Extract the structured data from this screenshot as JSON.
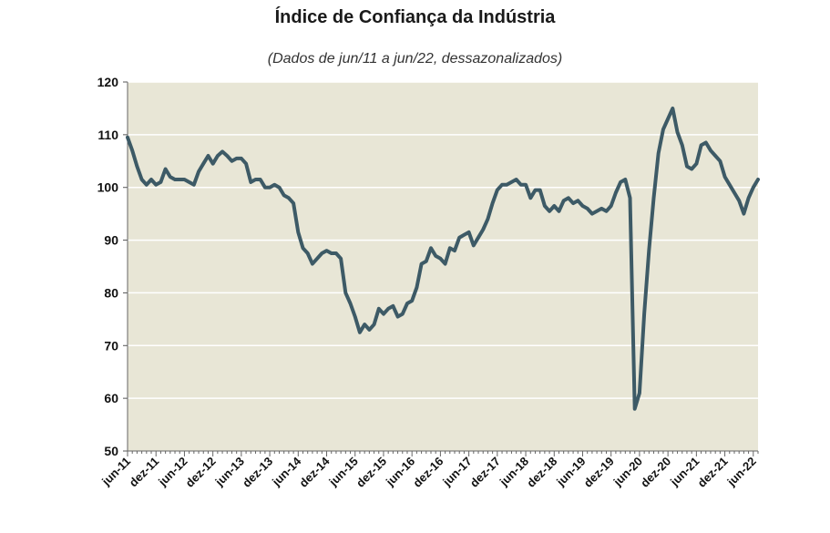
{
  "chart_data": {
    "type": "line",
    "title": "Índice de Confiança da Indústria",
    "subtitle": "(Dados de jun/11 a jun/22, dessazonalizados)",
    "xlabel": "",
    "ylabel": "",
    "ylim": [
      50,
      120
    ],
    "yticks": [
      50,
      60,
      70,
      80,
      90,
      100,
      110,
      120
    ],
    "xtick_labels": [
      "jun-11",
      "dez-11",
      "jun-12",
      "dez-12",
      "jun-13",
      "dez-13",
      "jun-14",
      "dez-14",
      "jun-15",
      "dez-15",
      "jun-16",
      "dez-16",
      "jun-17",
      "dez-17",
      "jun-18",
      "dez-18",
      "jun-19",
      "dez-19",
      "jun-20",
      "dez-20",
      "jun-21",
      "dez-21",
      "jun-22"
    ],
    "grid": true,
    "colors": {
      "line": "#3d5a66",
      "plot_bg": "#e8e6d6",
      "grid": "#ffffff"
    },
    "series": [
      {
        "values": [
          109.5,
          107,
          104,
          101.5,
          100.5,
          101.5,
          100.5,
          101,
          103.5,
          102,
          101.5,
          101.5,
          101.5,
          101,
          100.5,
          103,
          104.5,
          106,
          104.5,
          106,
          106.8,
          106,
          105,
          105.5,
          105.5,
          104.5,
          101,
          101.5,
          101.5,
          100,
          100,
          100.5,
          100,
          98.5,
          98,
          97,
          91.5,
          88.5,
          87.5,
          85.5,
          86.5,
          87.5,
          88,
          87.5,
          87.5,
          86.5,
          80,
          78,
          75.5,
          72.5,
          74,
          73,
          74,
          77,
          76,
          77,
          77.5,
          75.5,
          76,
          78,
          78.5,
          81,
          85.5,
          86,
          88.5,
          87,
          86.5,
          85.5,
          88.5,
          88,
          90.5,
          91,
          91.5,
          89,
          90.5,
          92,
          94,
          97,
          99.5,
          100.5,
          100.5,
          101,
          101.5,
          100.5,
          100.5,
          98,
          99.5,
          99.5,
          96.5,
          95.5,
          96.5,
          95.5,
          97.5,
          98,
          97,
          97.5,
          96.5,
          96,
          95,
          95.5,
          96,
          95.5,
          96.5,
          99,
          101,
          101.5,
          98,
          58,
          61,
          76,
          88,
          98,
          106.5,
          111,
          113,
          115,
          110.5,
          108,
          104,
          103.5,
          104.5,
          108,
          108.5,
          107,
          106,
          105,
          102,
          100.5,
          99,
          97.5,
          95,
          98,
          100,
          101.5
        ]
      }
    ]
  }
}
